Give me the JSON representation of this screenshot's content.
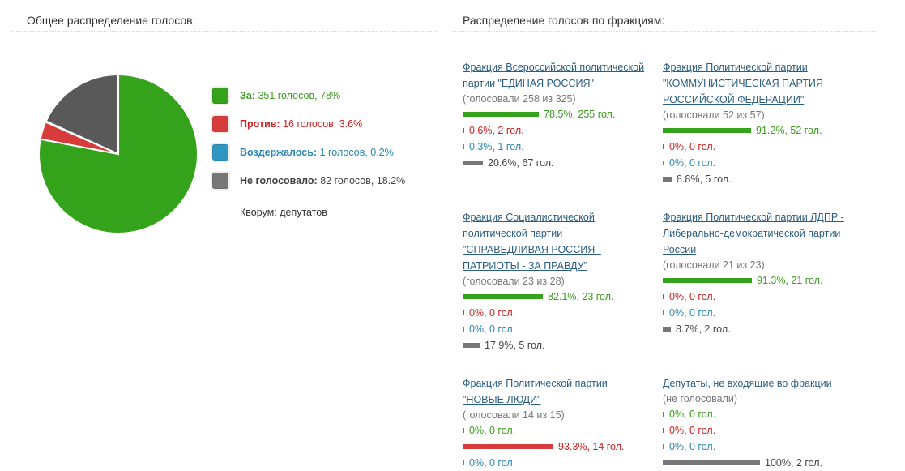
{
  "headings": {
    "overall": "Общее распределение голосов:",
    "factions": "Распределение голосов по фракциям:"
  },
  "colors": {
    "for": "#34a31b",
    "against": "#d83b3b",
    "abstain": "#2f95c1",
    "absent": "#595959"
  },
  "pie": [
    {
      "key": "for",
      "value": 78,
      "color": "#34a31b"
    },
    {
      "key": "against",
      "value": 3.6,
      "color": "#d83b3b"
    },
    {
      "key": "abstain",
      "value": 0.2,
      "color": "#2f95c1"
    },
    {
      "key": "absent",
      "value": 18.2,
      "color": "#595959"
    }
  ],
  "legend": {
    "for": {
      "label": "За:",
      "value": "351 голосов, 78%"
    },
    "against": {
      "label": "Против:",
      "value": "16 голосов, 3.6%"
    },
    "abstain": {
      "label": "Воздержалось:",
      "value": "1 голосов, 0.2%"
    },
    "absent": {
      "label": "Не голосовало:",
      "value": "82 голосов, 18.2%"
    },
    "quorum": "Кворум: депутатов"
  },
  "factions": [
    {
      "name": "Фракция Всероссийской политической партии \"ЕДИНАЯ РОССИЯ\"",
      "voted": "(голосовали 258 из 325)",
      "stats": [
        {
          "type": "green",
          "pct": 78.5,
          "text": "78.5%, 255 гол."
        },
        {
          "type": "red",
          "pct": 0.6,
          "text": "0.6%, 2 гол."
        },
        {
          "type": "blue",
          "pct": 0.3,
          "text": "0.3%, 1 гол."
        },
        {
          "type": "grey",
          "pct": 20.6,
          "text": "20.6%, 67 гол."
        }
      ]
    },
    {
      "name": "Фракция Политической партии \"КОММУНИСТИЧЕСКАЯ ПАРТИЯ РОССИЙСКОЙ ФЕДЕРАЦИИ\"",
      "voted": "(голосовали 52 из 57)",
      "stats": [
        {
          "type": "green",
          "pct": 91.2,
          "text": "91.2%, 52 гол."
        },
        {
          "type": "red",
          "pct": 0,
          "text": "0%, 0 гол."
        },
        {
          "type": "blue",
          "pct": 0,
          "text": "0%, 0 гол."
        },
        {
          "type": "grey",
          "pct": 8.8,
          "text": "8.8%, 5 гол."
        }
      ]
    },
    {
      "name": "Фракция Социалистической политической партии \"СПРАВЕДЛИВАЯ РОССИЯ - ПАТРИОТЫ - ЗА ПРАВДУ\"",
      "voted": "(голосовали 23 из 28)",
      "stats": [
        {
          "type": "green",
          "pct": 82.1,
          "text": "82.1%, 23 гол."
        },
        {
          "type": "red",
          "pct": 0,
          "text": "0%, 0 гол."
        },
        {
          "type": "blue",
          "pct": 0,
          "text": "0%, 0 гол."
        },
        {
          "type": "grey",
          "pct": 17.9,
          "text": "17.9%, 5 гол."
        }
      ]
    },
    {
      "name": "Фракция Политической партии ЛДПР - Либерально-демократической партии России",
      "voted": "(голосовали 21 из 23)",
      "stats": [
        {
          "type": "green",
          "pct": 91.3,
          "text": "91.3%, 21 гол."
        },
        {
          "type": "red",
          "pct": 0,
          "text": "0%, 0 гол."
        },
        {
          "type": "blue",
          "pct": 0,
          "text": "0%, 0 гол."
        },
        {
          "type": "grey",
          "pct": 8.7,
          "text": "8.7%, 2 гол."
        }
      ]
    },
    {
      "name": "Фракция Политической партии \"НОВЫЕ ЛЮДИ\"",
      "voted": "(голосовали 14 из 15)",
      "stats": [
        {
          "type": "green",
          "pct": 0,
          "text": "0%, 0 гол."
        },
        {
          "type": "red",
          "pct": 93.3,
          "text": "93.3%, 14 гол."
        },
        {
          "type": "blue",
          "pct": 0,
          "text": "0%, 0 гол."
        }
      ]
    },
    {
      "name": "Депутаты, не входящие во фракции",
      "voted": "(не голосовали)",
      "stats": [
        {
          "type": "green",
          "pct": 0,
          "text": "0%, 0 гол."
        },
        {
          "type": "red",
          "pct": 0,
          "text": "0%, 0 гол."
        },
        {
          "type": "blue",
          "pct": 0,
          "text": "0%, 0 гол."
        },
        {
          "type": "grey",
          "pct": 100,
          "text": "100%, 2 гол."
        }
      ]
    }
  ]
}
